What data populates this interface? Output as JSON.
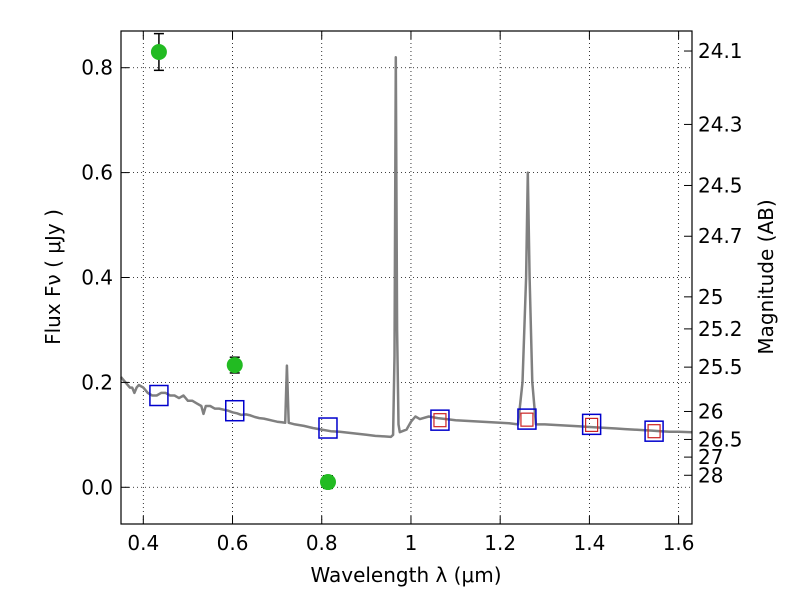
{
  "chart_data": {
    "type": "scatter",
    "xlabel": "Wavelength  λ (μm)",
    "ylabel": "Flux  Fν  ( μJy )",
    "y2label": "Magnitude (AB)",
    "xlim": [
      0.35,
      1.63
    ],
    "ylim": [
      -0.07,
      0.87
    ],
    "grid": true,
    "x_ticks": [
      0.4,
      0.6,
      0.8,
      1.0,
      1.2,
      1.4,
      1.6
    ],
    "x_tick_labels": [
      "0.4",
      "0.6",
      "0.8",
      "1",
      "1.2",
      "1.4",
      "1.6"
    ],
    "y_ticks": [
      0.0,
      0.2,
      0.4,
      0.6,
      0.8
    ],
    "y_tick_labels": [
      "0.0",
      "0.2",
      "0.4",
      "0.6",
      "0.8"
    ],
    "mag_ticks": [
      24.1,
      24.3,
      24.5,
      24.7,
      25,
      25.2,
      25.5,
      26,
      26.5,
      27,
      28
    ],
    "mag_tick_labels": [
      "24.1",
      "24.3",
      "24.5",
      "24.7",
      "25",
      "25.2",
      "25.5",
      "26",
      "26.5",
      "27",
      "28"
    ],
    "colors": {
      "spectrum": "#808080",
      "observed": "#22bb22",
      "model_blue": "#0000cc",
      "model_red": "#cc2222"
    },
    "spectrum": [
      [
        0.35,
        0.21
      ],
      [
        0.36,
        0.2
      ],
      [
        0.37,
        0.19
      ],
      [
        0.375,
        0.19
      ],
      [
        0.38,
        0.18
      ],
      [
        0.385,
        0.19
      ],
      [
        0.39,
        0.195
      ],
      [
        0.4,
        0.19
      ],
      [
        0.41,
        0.18
      ],
      [
        0.42,
        0.175
      ],
      [
        0.43,
        0.175
      ],
      [
        0.44,
        0.18
      ],
      [
        0.45,
        0.18
      ],
      [
        0.46,
        0.175
      ],
      [
        0.47,
        0.175
      ],
      [
        0.48,
        0.17
      ],
      [
        0.49,
        0.175
      ],
      [
        0.5,
        0.165
      ],
      [
        0.51,
        0.165
      ],
      [
        0.52,
        0.16
      ],
      [
        0.53,
        0.155
      ],
      [
        0.535,
        0.14
      ],
      [
        0.54,
        0.155
      ],
      [
        0.55,
        0.155
      ],
      [
        0.56,
        0.15
      ],
      [
        0.57,
        0.15
      ],
      [
        0.58,
        0.148
      ],
      [
        0.59,
        0.146
      ],
      [
        0.6,
        0.143
      ],
      [
        0.61,
        0.141
      ],
      [
        0.62,
        0.138
      ],
      [
        0.63,
        0.139
      ],
      [
        0.64,
        0.137
      ],
      [
        0.65,
        0.134
      ],
      [
        0.66,
        0.132
      ],
      [
        0.67,
        0.131
      ],
      [
        0.68,
        0.129
      ],
      [
        0.69,
        0.127
      ],
      [
        0.7,
        0.125
      ],
      [
        0.71,
        0.124
      ],
      [
        0.718,
        0.123
      ],
      [
        0.722,
        0.232
      ],
      [
        0.726,
        0.123
      ],
      [
        0.74,
        0.12
      ],
      [
        0.76,
        0.117
      ],
      [
        0.78,
        0.113
      ],
      [
        0.8,
        0.11
      ],
      [
        0.82,
        0.107
      ],
      [
        0.84,
        0.106
      ],
      [
        0.86,
        0.104
      ],
      [
        0.88,
        0.102
      ],
      [
        0.9,
        0.1
      ],
      [
        0.92,
        0.098
      ],
      [
        0.94,
        0.097
      ],
      [
        0.955,
        0.096
      ],
      [
        0.96,
        0.1
      ],
      [
        0.963,
        0.25
      ],
      [
        0.966,
        0.82
      ],
      [
        0.969,
        0.3
      ],
      [
        0.972,
        0.12
      ],
      [
        0.975,
        0.105
      ],
      [
        0.99,
        0.11
      ],
      [
        1.0,
        0.125
      ],
      [
        1.01,
        0.135
      ],
      [
        1.02,
        0.13
      ],
      [
        1.04,
        0.135
      ],
      [
        1.06,
        0.132
      ],
      [
        1.08,
        0.13
      ],
      [
        1.1,
        0.128
      ],
      [
        1.12,
        0.127
      ],
      [
        1.14,
        0.126
      ],
      [
        1.16,
        0.125
      ],
      [
        1.18,
        0.124
      ],
      [
        1.2,
        0.123
      ],
      [
        1.22,
        0.122
      ],
      [
        1.24,
        0.12
      ],
      [
        1.25,
        0.2
      ],
      [
        1.258,
        0.4
      ],
      [
        1.262,
        0.6
      ],
      [
        1.266,
        0.4
      ],
      [
        1.272,
        0.2
      ],
      [
        1.28,
        0.12
      ],
      [
        1.3,
        0.12
      ],
      [
        1.32,
        0.119
      ],
      [
        1.34,
        0.118
      ],
      [
        1.36,
        0.117
      ],
      [
        1.38,
        0.116
      ],
      [
        1.4,
        0.115
      ],
      [
        1.42,
        0.114
      ],
      [
        1.44,
        0.113
      ],
      [
        1.46,
        0.112
      ],
      [
        1.48,
        0.111
      ],
      [
        1.5,
        0.11
      ],
      [
        1.52,
        0.109
      ],
      [
        1.54,
        0.108
      ],
      [
        1.56,
        0.107
      ],
      [
        1.58,
        0.106
      ],
      [
        1.6,
        0.106
      ],
      [
        1.63,
        0.105
      ]
    ],
    "observed_points": [
      {
        "x": 0.435,
        "y": 0.83,
        "err": 0.035
      },
      {
        "x": 0.605,
        "y": 0.233,
        "err": 0.015
      },
      {
        "x": 0.814,
        "y": 0.01,
        "err": 0.012
      }
    ],
    "model_blue_squares": [
      {
        "x": 0.435,
        "y": 0.175
      },
      {
        "x": 0.605,
        "y": 0.146
      },
      {
        "x": 0.814,
        "y": 0.113
      },
      {
        "x": 1.065,
        "y": 0.128
      },
      {
        "x": 1.26,
        "y": 0.13
      },
      {
        "x": 1.405,
        "y": 0.12
      },
      {
        "x": 1.545,
        "y": 0.107
      }
    ],
    "model_red_squares": [
      {
        "x": 1.065,
        "y": 0.127
      },
      {
        "x": 1.26,
        "y": 0.128
      },
      {
        "x": 1.405,
        "y": 0.118
      },
      {
        "x": 1.545,
        "y": 0.106
      }
    ]
  }
}
